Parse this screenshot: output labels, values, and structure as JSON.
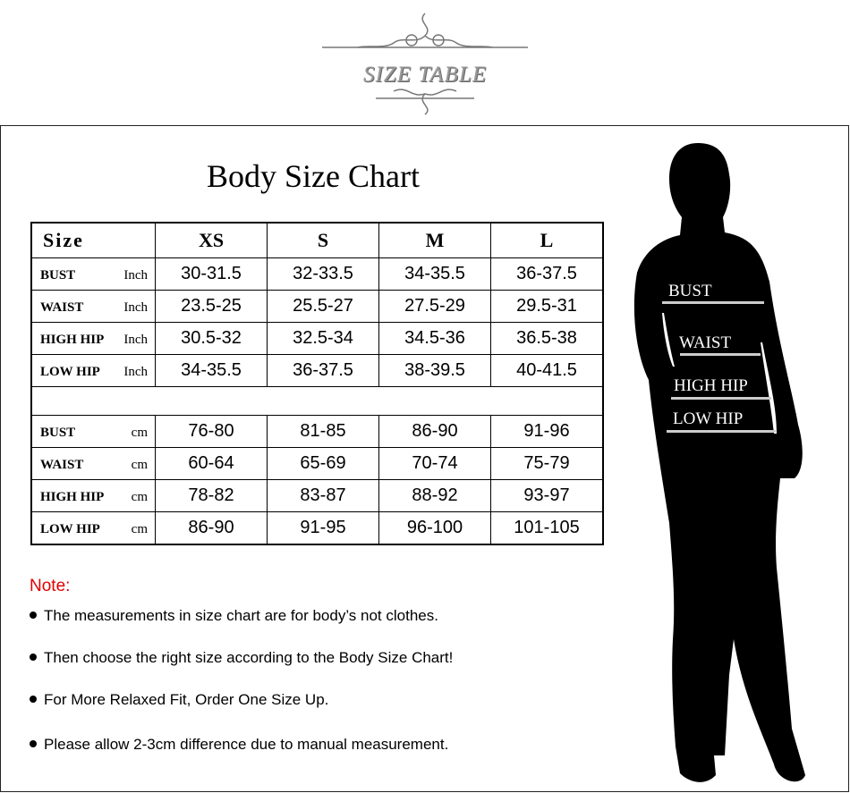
{
  "logo": {
    "text": "SIZE TABLE"
  },
  "title": "Body Size Chart",
  "table": {
    "header": [
      "Size",
      "XS",
      "S",
      "M",
      "L"
    ],
    "inch_rows": [
      {
        "label": "BUST",
        "unit": "Inch",
        "values": [
          "30-31.5",
          "32-33.5",
          "34-35.5",
          "36-37.5"
        ]
      },
      {
        "label": "WAIST",
        "unit": "Inch",
        "values": [
          "23.5-25",
          "25.5-27",
          "27.5-29",
          "29.5-31"
        ]
      },
      {
        "label": "HIGH HIP",
        "unit": "Inch",
        "values": [
          "30.5-32",
          "32.5-34",
          "34.5-36",
          "36.5-38"
        ]
      },
      {
        "label": "LOW HIP",
        "unit": "Inch",
        "values": [
          "34-35.5",
          "36-37.5",
          "38-39.5",
          "40-41.5"
        ]
      }
    ],
    "cm_rows": [
      {
        "label": "BUST",
        "unit": "cm",
        "values": [
          "76-80",
          "81-85",
          "86-90",
          "91-96"
        ]
      },
      {
        "label": "WAIST",
        "unit": "cm",
        "values": [
          "60-64",
          "65-69",
          "70-74",
          "75-79"
        ]
      },
      {
        "label": "HIGH HIP",
        "unit": "cm",
        "values": [
          "78-82",
          "83-87",
          "88-92",
          "93-97"
        ]
      },
      {
        "label": "LOW HIP",
        "unit": "cm",
        "values": [
          "86-90",
          "91-95",
          "96-100",
          "101-105"
        ]
      }
    ]
  },
  "note": {
    "heading": "Note:",
    "color": "#e00000",
    "items": [
      "The measurements in size chart are for body’s not clothes.",
      "Then choose the right size according to the Body Size Chart!",
      "For More Relaxed Fit, Order One Size Up.",
      "Please allow 2-3cm difference due to manual measurement."
    ]
  },
  "figure": {
    "labels": [
      "BUST",
      "WAIST",
      "HIGH HIP",
      "LOW HIP"
    ]
  }
}
